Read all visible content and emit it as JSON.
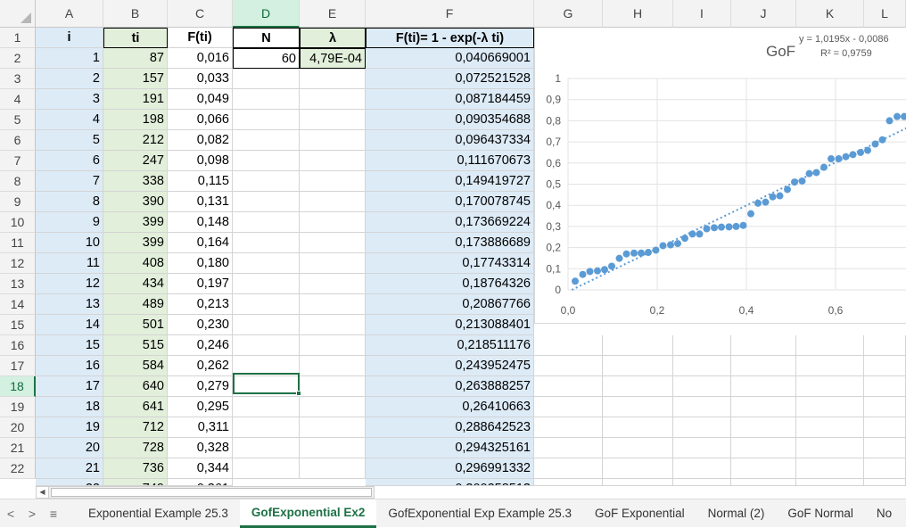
{
  "columns": [
    "A",
    "B",
    "C",
    "D",
    "E",
    "F",
    "G",
    "H",
    "I",
    "J",
    "K",
    "L"
  ],
  "selected_column": "D",
  "selected_row": "18",
  "rows": [
    "1",
    "2",
    "3",
    "4",
    "5",
    "6",
    "7",
    "8",
    "9",
    "10",
    "11",
    "12",
    "13",
    "14",
    "15",
    "16",
    "17",
    "18",
    "19",
    "20",
    "21",
    "22"
  ],
  "headers": {
    "a": "i",
    "b": "ti",
    "c": "F(ti)",
    "d": "N",
    "e": "λ",
    "f": "F(ti)= 1 - exp(-λ ti)"
  },
  "params": {
    "N": "60",
    "lambda": "4,79E-04"
  },
  "data_rows": [
    [
      "1",
      "87",
      "0,016",
      "0,040669001"
    ],
    [
      "2",
      "157",
      "0,033",
      "0,072521528"
    ],
    [
      "3",
      "191",
      "0,049",
      "0,087184459"
    ],
    [
      "4",
      "198",
      "0,066",
      "0,090354688"
    ],
    [
      "5",
      "212",
      "0,082",
      "0,096437334"
    ],
    [
      "6",
      "247",
      "0,098",
      "0,111670673"
    ],
    [
      "7",
      "338",
      "0,115",
      "0,149419727"
    ],
    [
      "8",
      "390",
      "0,131",
      "0,170078745"
    ],
    [
      "9",
      "399",
      "0,148",
      "0,173669224"
    ],
    [
      "10",
      "399",
      "0,164",
      "0,173886689"
    ],
    [
      "11",
      "408",
      "0,180",
      "0,17743314"
    ],
    [
      "12",
      "434",
      "0,197",
      "0,18764326"
    ],
    [
      "13",
      "489",
      "0,213",
      "0,20867766"
    ],
    [
      "14",
      "501",
      "0,230",
      "0,213088401"
    ],
    [
      "15",
      "515",
      "0,246",
      "0,218511176"
    ],
    [
      "16",
      "584",
      "0,262",
      "0,243952475"
    ],
    [
      "17",
      "640",
      "0,279",
      "0,263888257"
    ],
    [
      "18",
      "641",
      "0,295",
      "0,26410663"
    ],
    [
      "19",
      "712",
      "0,311",
      "0,288642523"
    ],
    [
      "20",
      "728",
      "0,328",
      "0,294325161"
    ],
    [
      "21",
      "736",
      "0,344",
      "0,296991332"
    ]
  ],
  "chart_data": {
    "type": "scatter",
    "title": "GoF",
    "trendline_equation": "y = 1,0195x - 0,0086",
    "r_squared": "R² = 0,9759",
    "trendline": {
      "slope": 1.0195,
      "intercept": -0.0086
    },
    "xlim": [
      0,
      0.76
    ],
    "ylim": [
      0,
      1
    ],
    "x_ticks": [
      "0,0",
      "0,2",
      "0,4",
      "0,6"
    ],
    "x_tick_values": [
      0,
      0.2,
      0.4,
      0.6
    ],
    "y_ticks": [
      "0",
      "0,1",
      "0,2",
      "0,3",
      "0,4",
      "0,5",
      "0,6",
      "0,7",
      "0,8",
      "0,9",
      "1"
    ],
    "y_tick_values": [
      0,
      0.1,
      0.2,
      0.3,
      0.4,
      0.5,
      0.6,
      0.7,
      0.8,
      0.9,
      1
    ],
    "marker_color": "#5b9bd5",
    "series": [
      {
        "x": [
          0.016,
          0.033,
          0.049,
          0.066,
          0.082,
          0.098,
          0.115,
          0.131,
          0.148,
          0.164,
          0.18,
          0.197,
          0.213,
          0.23,
          0.246,
          0.262,
          0.279,
          0.295,
          0.311,
          0.328,
          0.344,
          0.361,
          0.377,
          0.393,
          0.41,
          0.426,
          0.443,
          0.459,
          0.475,
          0.492,
          0.508,
          0.525,
          0.541,
          0.557,
          0.574,
          0.59,
          0.607,
          0.623,
          0.639,
          0.656,
          0.672,
          0.689,
          0.705,
          0.721,
          0.738,
          0.754
        ],
        "y": [
          0.041,
          0.073,
          0.087,
          0.09,
          0.096,
          0.112,
          0.149,
          0.17,
          0.174,
          0.174,
          0.177,
          0.188,
          0.209,
          0.213,
          0.219,
          0.244,
          0.264,
          0.264,
          0.289,
          0.294,
          0.297,
          0.298,
          0.3,
          0.305,
          0.36,
          0.41,
          0.415,
          0.44,
          0.445,
          0.475,
          0.51,
          0.515,
          0.55,
          0.555,
          0.58,
          0.62,
          0.62,
          0.63,
          0.64,
          0.65,
          0.66,
          0.69,
          0.71,
          0.8,
          0.82,
          0.82
        ]
      }
    ]
  },
  "sheet_tabs": [
    "Exponential Example 25.3",
    "GofExponential Ex2",
    "GofExponential Exp Example 25.3",
    "GoF Exponential",
    "Normal (2)",
    "GoF Normal",
    "No"
  ],
  "active_tab": "GofExponential Ex2",
  "nav": {
    "prev": "<",
    "next": ">",
    "menu": "≡"
  }
}
